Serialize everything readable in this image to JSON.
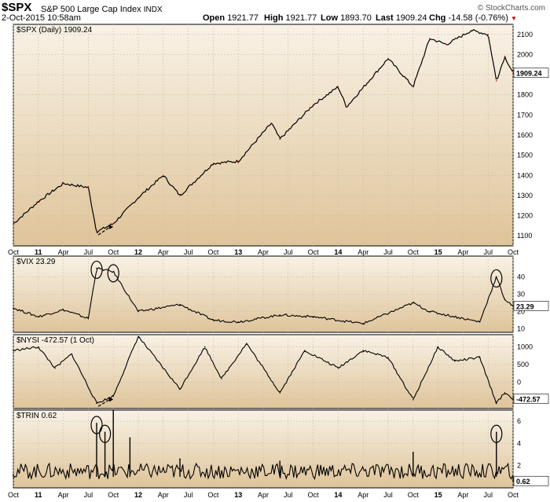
{
  "header": {
    "symbol": "$SPX",
    "name": "S&P 500 Large Cap Index",
    "exchange": "INDX",
    "datetime": "2-Oct-2015 10:58am",
    "brand": "© StockCharts.com",
    "open_label": "Open",
    "open": "1921.77",
    "high_label": "High",
    "high": "1921.77",
    "low_label": "Low",
    "low": "1893.70",
    "last_label": "Last",
    "last": "1909.24",
    "chg_label": "Chg",
    "chg": "-14.58 (-0.76%)",
    "chg_arrow": "▼"
  },
  "colors": {
    "panel_top": "#f8f2e6",
    "panel_bottom": "#dfc49a",
    "down_color": "#cc0000",
    "line_color": "#000000",
    "last_box": "#ffffff"
  },
  "chart_data": [
    {
      "type": "line",
      "title": "$SPX (Daily) 1909.24",
      "last_value": "1909.24",
      "ylim": [
        1050,
        2150
      ],
      "yticks": [
        1100,
        1200,
        1300,
        1400,
        1500,
        1600,
        1700,
        1800,
        1900,
        2000,
        2100
      ],
      "x": [
        "Oct 2010",
        "Jan 2011",
        "Apr 2011",
        "Jul 2011",
        "Aug 2011",
        "Oct 2011",
        "Jan 2012",
        "Apr 2012",
        "Jun 2012",
        "Oct 2012",
        "Jan 2013",
        "May 2013",
        "Jun 2013",
        "Oct 2013",
        "Jan 2014",
        "Feb 2014",
        "Jul 2014",
        "Oct 2014",
        "Dec 2014",
        "Feb 2015",
        "May 2015",
        "Jul 2015",
        "Aug 2015",
        "Sep 2015",
        "Oct 2015"
      ],
      "values": [
        1160,
        1270,
        1360,
        1340,
        1120,
        1160,
        1290,
        1400,
        1300,
        1460,
        1470,
        1660,
        1580,
        1750,
        1840,
        1740,
        1980,
        1840,
        2080,
        2050,
        2120,
        2100,
        1870,
        1990,
        1909
      ],
      "annotations": [
        {
          "type": "arrow",
          "from": "Aug 2011",
          "to": "Oct 2011",
          "label": ""
        }
      ]
    },
    {
      "type": "line",
      "title": "$VIX 23.29",
      "last_value": "23.29",
      "ylim": [
        8,
        52
      ],
      "yticks": [
        10,
        20,
        30,
        40
      ],
      "x": [
        "Oct 2010",
        "Jan 2011",
        "Apr 2011",
        "Jul 2011",
        "Aug 2011",
        "Oct 2011",
        "Jan 2012",
        "Jun 2012",
        "Oct 2012",
        "Jan 2013",
        "Jun 2013",
        "Oct 2013",
        "Apr 2014",
        "Oct 2014",
        "Dec 2014",
        "Jun 2015",
        "Aug 2015",
        "Sep 2015",
        "Oct 2015"
      ],
      "values": [
        22,
        17,
        21,
        16,
        45,
        43,
        20,
        24,
        15,
        14,
        18,
        17,
        13,
        25,
        20,
        14,
        40,
        27,
        23
      ],
      "annotations": [
        {
          "type": "circle",
          "at": "Aug 2011"
        },
        {
          "type": "circle",
          "at": "Oct 2011"
        },
        {
          "type": "circle",
          "at": "Aug 2015"
        }
      ]
    },
    {
      "type": "line",
      "title": "$NYSI -472.57 (1 Oct)",
      "last_value": "-472.57",
      "ylim": [
        -750,
        1350
      ],
      "yticks": [
        -500,
        0,
        500,
        1000
      ],
      "x": [
        "Oct 2010",
        "Jan 2011",
        "Mar 2011",
        "May 2011",
        "Aug 2011",
        "Oct 2011",
        "Jan 2012",
        "Jun 2012",
        "Sep 2012",
        "Nov 2012",
        "Feb 2013",
        "Jun 2013",
        "Sep 2013",
        "Jan 2014",
        "Apr 2014",
        "Jul 2014",
        "Oct 2014",
        "Jan 2015",
        "Mar 2015",
        "Jun 2015",
        "Aug 2015",
        "Sep 2015",
        "Oct 2015"
      ],
      "values": [
        900,
        1000,
        400,
        800,
        -600,
        -400,
        1300,
        -200,
        1000,
        100,
        1100,
        -300,
        900,
        400,
        900,
        700,
        -500,
        1000,
        600,
        700,
        -600,
        -300,
        -472
      ],
      "annotations": [
        {
          "type": "arrow",
          "from": "Aug 2011",
          "to": "Oct 2011",
          "label": ""
        }
      ]
    },
    {
      "type": "line",
      "title": "$TRIN 0.62",
      "last_value": "0.62",
      "ylim": [
        0,
        7
      ],
      "yticks": [
        2,
        4,
        6
      ],
      "x": [
        "Oct 2010",
        "Aug 2011",
        "Sep 2011",
        "Oct 2011",
        "Dec 2011",
        "Jun 2012",
        "Jun 2013",
        "Oct 2014",
        "Aug 2015",
        "Oct 2015"
      ],
      "values": [
        1.2,
        5.8,
        5.0,
        7.0,
        4.5,
        2.6,
        2.4,
        3.2,
        5.0,
        0.62
      ],
      "annotations": [
        {
          "type": "circle",
          "at": "Aug 2011"
        },
        {
          "type": "circle",
          "at": "Sep 2011"
        },
        {
          "type": "circle",
          "at": "Aug 2015"
        }
      ]
    }
  ],
  "x_axis": {
    "labels": [
      "Oct",
      "11",
      "Apr",
      "Jul",
      "Oct",
      "12",
      "Apr",
      "Jul",
      "Oct",
      "13",
      "Apr",
      "Jul",
      "Oct",
      "14",
      "Apr",
      "Jul",
      "Oct",
      "15",
      "Apr",
      "Jul",
      "Oct"
    ],
    "year_labels": [
      "11",
      "12",
      "13",
      "14",
      "15"
    ]
  }
}
